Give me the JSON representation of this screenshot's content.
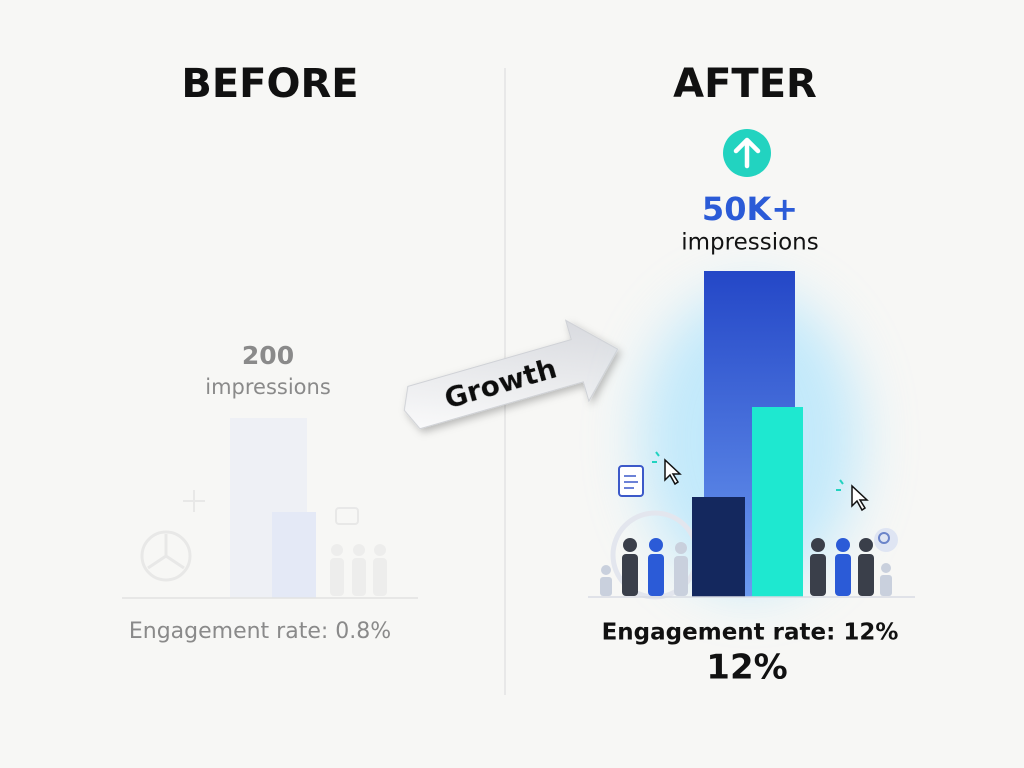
{
  "before": {
    "title": "BEFORE",
    "value": 200,
    "unit": "impressions",
    "engagement": "Engagement rate: 0.8%"
  },
  "arrow": {
    "label": "Growth"
  },
  "after": {
    "title": "AFTER",
    "value": "50K+",
    "unit": "impressions",
    "engagement": "Engagement rate: 12%",
    "highlight": "12%"
  }
}
